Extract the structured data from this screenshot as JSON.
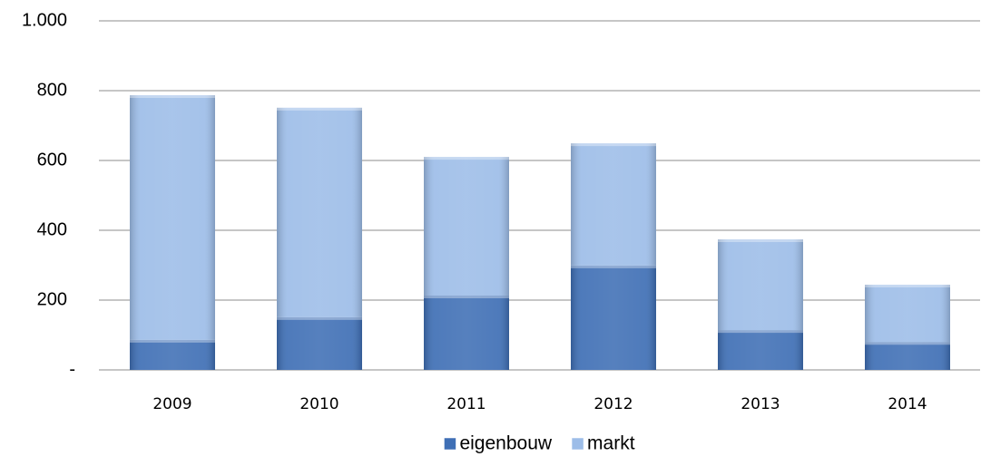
{
  "chart_data": {
    "type": "stacked_bar",
    "categories": [
      "2009",
      "2010",
      "2011",
      "2012",
      "2013",
      "2014"
    ],
    "series": [
      {
        "name": "eigenbouw",
        "color": "#3f6fb5",
        "values": [
          86,
          151,
          213,
          299,
          114,
          80
        ]
      },
      {
        "name": "markt",
        "color": "#9dbde8",
        "values": [
          701,
          600,
          397,
          350,
          260,
          164
        ]
      }
    ],
    "ylim": [
      0,
      1000
    ],
    "yticks": [
      {
        "value": 0,
        "label": "-"
      },
      200,
      400,
      600,
      800,
      {
        "value": 1000,
        "label": "1.000"
      }
    ],
    "grid": true,
    "legend": "bottom"
  }
}
